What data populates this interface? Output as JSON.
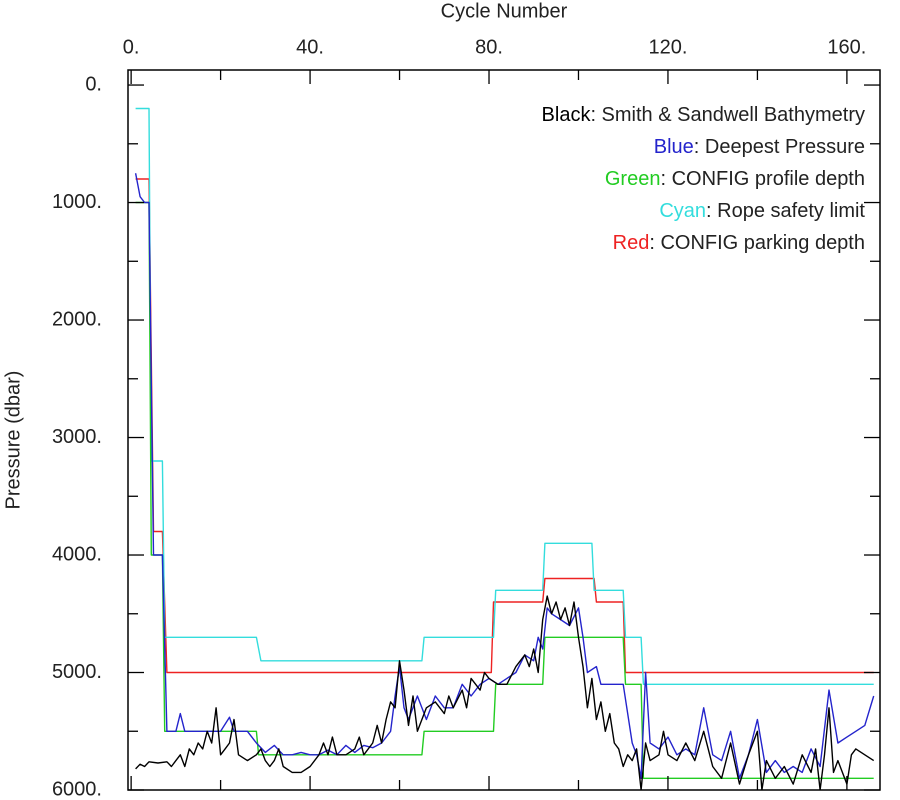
{
  "chart_data": {
    "type": "line",
    "xlabel": "Cycle Number",
    "ylabel": "Pressure (dbar)",
    "xlim": [
      -0.7,
      167.4
    ],
    "ylim": [
      -128,
      6000
    ],
    "y_inverted": true,
    "xticks": [
      {
        "value": 0,
        "label": "0."
      },
      {
        "value": 40,
        "label": "40."
      },
      {
        "value": 80,
        "label": "80."
      },
      {
        "value": 120,
        "label": "120."
      },
      {
        "value": 160,
        "label": "160."
      }
    ],
    "xminorticks": [
      20,
      60,
      100,
      140
    ],
    "yticks": [
      {
        "value": 0,
        "label": "0."
      },
      {
        "value": 1000,
        "label": "1000."
      },
      {
        "value": 2000,
        "label": "2000."
      },
      {
        "value": 3000,
        "label": "3000."
      },
      {
        "value": 4000,
        "label": "4000."
      },
      {
        "value": 5000,
        "label": "5000."
      },
      {
        "value": 6000,
        "label": "6000."
      }
    ],
    "yminorticks": [
      500,
      1500,
      2500,
      3500,
      4500,
      5500
    ],
    "legend": "upper right",
    "series": [
      {
        "label_parts": [
          "Black",
          ": Smith & Sandwell Bathymetry"
        ],
        "color": "#000000",
        "x": [
          1,
          2,
          3,
          4,
          6,
          8,
          9,
          10,
          11,
          12,
          13,
          14,
          15,
          16,
          17,
          18,
          19,
          20,
          21,
          22,
          23,
          24,
          26,
          28,
          29,
          30,
          31,
          32,
          33,
          34,
          36,
          38,
          40,
          42,
          43,
          44,
          45,
          46,
          48,
          50,
          51,
          52,
          54,
          55,
          56,
          57,
          58,
          59,
          60,
          61,
          62,
          63,
          64,
          66,
          68,
          70,
          71,
          72,
          74,
          75,
          76,
          78,
          79,
          80,
          82,
          84,
          86,
          88,
          89,
          90,
          91,
          92,
          93,
          94,
          95,
          96,
          97,
          98,
          99,
          100,
          101,
          102,
          103,
          104,
          105,
          106,
          107,
          108,
          109,
          110,
          111,
          112,
          113,
          114,
          115,
          116,
          118,
          119,
          120,
          122,
          124,
          126,
          128,
          130,
          132,
          134,
          136,
          138,
          140,
          141,
          142,
          144,
          146,
          148,
          150,
          152,
          153,
          154,
          155,
          156,
          157,
          158,
          160,
          161,
          162,
          164,
          166
        ],
        "values": [
          5820,
          5780,
          5800,
          5760,
          5770,
          5760,
          5800,
          5750,
          5700,
          5800,
          5650,
          5700,
          5600,
          5650,
          5500,
          5600,
          5300,
          5700,
          5650,
          5600,
          5400,
          5700,
          5750,
          5700,
          5650,
          5750,
          5800,
          5750,
          5650,
          5800,
          5850,
          5850,
          5800,
          5700,
          5600,
          5700,
          5550,
          5700,
          5700,
          5650,
          5550,
          5700,
          5600,
          5450,
          5600,
          5400,
          5250,
          5300,
          4900,
          5150,
          5450,
          5200,
          5500,
          5300,
          5250,
          5350,
          5200,
          5300,
          5150,
          5300,
          5050,
          5150,
          5000,
          5050,
          5100,
          5100,
          4950,
          4850,
          4950,
          4800,
          5000,
          4550,
          4350,
          4500,
          4400,
          4550,
          4450,
          4600,
          4400,
          4700,
          4950,
          5300,
          5050,
          5400,
          5250,
          5500,
          5350,
          5600,
          5650,
          5800,
          5700,
          5750,
          5650,
          6000,
          5600,
          5750,
          5700,
          5500,
          5700,
          5750,
          5600,
          5750,
          5500,
          5800,
          5900,
          5600,
          5950,
          5700,
          5500,
          6000,
          5750,
          5900,
          5800,
          5950,
          5700,
          5850,
          5650,
          6000,
          5700,
          5300,
          5850,
          5750,
          5950,
          5700,
          5650,
          5700,
          5750
        ]
      },
      {
        "label_parts": [
          "Blue",
          ": Deepest Pressure"
        ],
        "color": "#2424cc",
        "x": [
          1,
          2,
          3,
          4,
          5,
          7,
          8,
          10,
          11,
          12,
          14,
          16,
          18,
          20,
          22,
          23,
          26,
          28,
          30,
          32,
          34,
          36,
          38,
          40,
          42,
          44,
          46,
          48,
          50,
          52,
          54,
          56,
          58,
          59,
          60,
          61,
          62,
          64,
          66,
          68,
          70,
          72,
          74,
          76,
          78,
          80,
          82,
          84,
          86,
          88,
          90,
          91,
          92,
          93,
          94,
          96,
          98,
          100,
          101,
          102,
          104,
          105,
          106,
          108,
          110,
          112,
          113,
          114,
          115,
          116,
          118,
          120,
          122,
          124,
          126,
          128,
          130,
          132,
          134,
          136,
          138,
          140,
          142,
          144,
          146,
          148,
          150,
          152,
          154,
          156,
          158,
          160,
          162,
          164,
          166
        ],
        "values": [
          750,
          950,
          1000,
          1000,
          4000,
          4000,
          5500,
          5500,
          5350,
          5500,
          5500,
          5500,
          5500,
          5500,
          5380,
          5500,
          5500,
          5600,
          5680,
          5620,
          5700,
          5700,
          5680,
          5700,
          5700,
          5660,
          5700,
          5620,
          5680,
          5620,
          5640,
          5600,
          5500,
          5200,
          4950,
          5300,
          5400,
          5200,
          5400,
          5200,
          5300,
          5300,
          5100,
          5200,
          5100,
          5050,
          5100,
          5050,
          5000,
          4850,
          4900,
          4700,
          4800,
          4450,
          4500,
          4550,
          4600,
          4450,
          4700,
          5000,
          4950,
          5100,
          5100,
          5100,
          5100,
          5600,
          5700,
          5900,
          5000,
          5600,
          5650,
          5550,
          5700,
          5650,
          5700,
          5300,
          5700,
          5750,
          5500,
          5900,
          5700,
          5400,
          5850,
          5750,
          5850,
          5800,
          5850,
          5650,
          5800,
          5150,
          5600,
          5550,
          5500,
          5450,
          5200
        ]
      },
      {
        "label_parts": [
          "Green",
          ": CONFIG profile depth"
        ],
        "color": "#22cc22",
        "x": [
          1,
          4,
          4.5,
          7,
          7.5,
          28,
          28.5,
          65,
          65.5,
          81,
          81.5,
          92,
          92.5,
          110,
          110.5,
          114,
          114.5,
          166
        ],
        "values": [
          1000,
          1000,
          4000,
          4000,
          5500,
          5500,
          5700,
          5700,
          5500,
          5500,
          5100,
          5100,
          4700,
          4700,
          5100,
          5100,
          5900,
          5900
        ]
      },
      {
        "label_parts": [
          "Cyan",
          ": Rope safety limit"
        ],
        "color": "#33dddd",
        "x": [
          1,
          4,
          4.5,
          7,
          7.5,
          28,
          29,
          65,
          65.5,
          81,
          81.5,
          92,
          92.5,
          103,
          103.5,
          110,
          110.5,
          114,
          114.5,
          166
        ],
        "values": [
          200,
          200,
          3200,
          3200,
          4700,
          4700,
          4900,
          4900,
          4700,
          4700,
          4300,
          4300,
          3900,
          3900,
          4300,
          4300,
          4700,
          4700,
          5100,
          5100
        ]
      },
      {
        "label_parts": [
          "Red",
          ": CONFIG parking depth"
        ],
        "color": "#ee2222",
        "x": [
          1,
          4,
          5,
          7,
          8,
          80.5,
          81,
          92,
          92.5,
          103.5,
          104,
          110,
          110.5,
          166
        ],
        "values": [
          800,
          800,
          3800,
          3800,
          5000,
          5000,
          4400,
          4400,
          4200,
          4200,
          4400,
          4400,
          5000,
          5000
        ]
      }
    ]
  }
}
